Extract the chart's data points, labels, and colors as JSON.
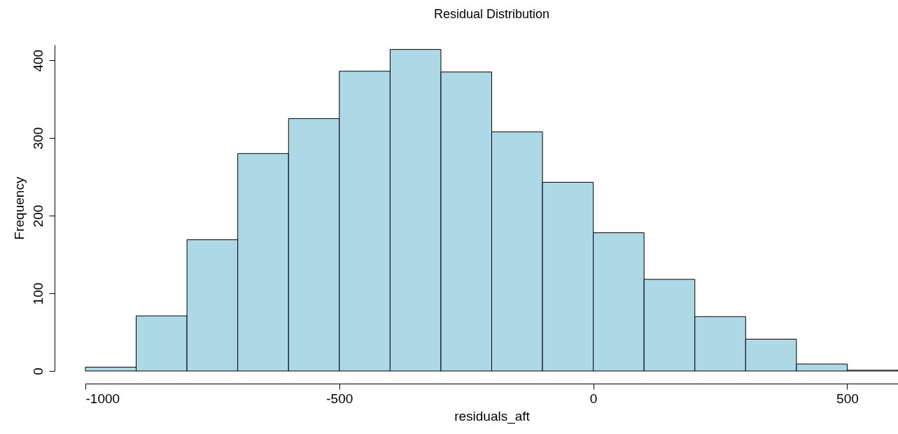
{
  "chart_data": {
    "type": "histogram",
    "title": "Residual Distribution",
    "xlabel": "residuals_aft",
    "ylabel": "Frequency",
    "bins": [
      -1000,
      -900,
      -800,
      -700,
      -600,
      -500,
      -400,
      -300,
      -200,
      -100,
      0,
      100,
      200,
      300,
      400,
      500,
      600
    ],
    "values": [
      5,
      71,
      169,
      280,
      325,
      386,
      414,
      385,
      308,
      243,
      178,
      118,
      70,
      41,
      9,
      1
    ],
    "color": "#add8e6",
    "xlim": [
      -1000,
      600
    ],
    "ylim": [
      0,
      420
    ],
    "xticks": [
      -1000,
      -500,
      0,
      500
    ],
    "yticks": [
      0,
      100,
      200,
      300,
      400
    ]
  }
}
